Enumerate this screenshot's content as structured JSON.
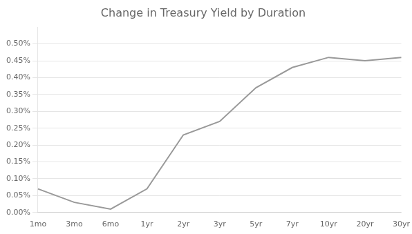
{
  "chart_data": {
    "type": "line",
    "title": "Change in Treasury Yield by Duration",
    "categories": [
      "1mo",
      "3mo",
      "6mo",
      "1yr",
      "2yr",
      "3yr",
      "5yr",
      "7yr",
      "10yr",
      "20yr",
      "30yr"
    ],
    "values": [
      0.0007,
      0.0003,
      0.0001,
      0.0007,
      0.0023,
      0.0027,
      0.0037,
      0.0043,
      0.0046,
      0.0045,
      0.0046
    ],
    "color": "#999999",
    "ylim": [
      0.0,
      0.0055
    ],
    "yticks": [
      {
        "value": 0.0,
        "label": "0.00%"
      },
      {
        "value": 0.0005,
        "label": "0.05%"
      },
      {
        "value": 0.001,
        "label": "0.10%"
      },
      {
        "value": 0.0015,
        "label": "0.15%"
      },
      {
        "value": 0.002,
        "label": "0.20%"
      },
      {
        "value": 0.0025,
        "label": "0.25%"
      },
      {
        "value": 0.003,
        "label": "0.30%"
      },
      {
        "value": 0.0035,
        "label": "0.35%"
      },
      {
        "value": 0.004,
        "label": "0.40%"
      },
      {
        "value": 0.0045,
        "label": "0.45%"
      },
      {
        "value": 0.005,
        "label": "0.50%"
      }
    ],
    "grid": true
  }
}
